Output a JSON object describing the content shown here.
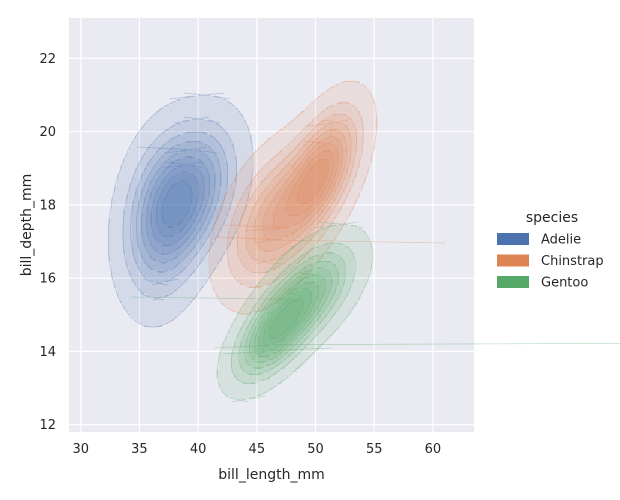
{
  "chart_data": {
    "type": "kde-contour",
    "title": "",
    "xlabel": "bill_length_mm",
    "ylabel": "bill_depth_mm",
    "xlim": [
      29,
      63.5
    ],
    "ylim": [
      11.8,
      23.1
    ],
    "xticks": [
      30,
      35,
      40,
      45,
      50,
      55,
      60
    ],
    "yticks": [
      12,
      14,
      16,
      18,
      20,
      22
    ],
    "grid": true,
    "legend": {
      "title": "species",
      "placement": "right"
    },
    "series": [
      {
        "name": "Adelie",
        "color": "#4c72b0",
        "peaks": [
          {
            "x": 39.2,
            "y": 18.3,
            "sx": 2.3,
            "sy": 1.1,
            "rho": 0.35,
            "w": 1.0
          },
          {
            "x": 37.0,
            "y": 17.6,
            "sx": 2.0,
            "sy": 1.3,
            "rho": 0.2,
            "w": 0.7
          }
        ]
      },
      {
        "name": "Chinstrap",
        "color": "#dd8452",
        "peaks": [
          {
            "x": 50.5,
            "y": 18.9,
            "sx": 1.9,
            "sy": 1.0,
            "rho": 0.55,
            "w": 1.0
          },
          {
            "x": 46.5,
            "y": 17.6,
            "sx": 2.4,
            "sy": 1.1,
            "rho": 0.45,
            "w": 0.7
          }
        ]
      },
      {
        "name": "Gentoo",
        "color": "#55a868",
        "peaks": [
          {
            "x": 46.5,
            "y": 14.5,
            "sx": 2.0,
            "sy": 0.75,
            "rho": 0.6,
            "w": 1.0
          },
          {
            "x": 49.5,
            "y": 15.6,
            "sx": 2.3,
            "sy": 0.8,
            "rho": 0.55,
            "w": 0.8
          }
        ]
      }
    ]
  }
}
